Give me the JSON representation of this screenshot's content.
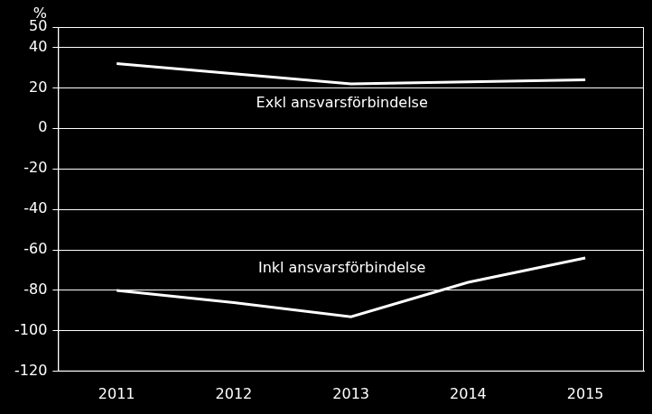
{
  "chart_data": {
    "type": "line",
    "ylabel": "%",
    "categories": [
      "2011",
      "2012",
      "2013",
      "2014",
      "2015"
    ],
    "series": [
      {
        "name": "Exkl ansvarsförbindelse",
        "color": "#ffffff",
        "values": [
          32,
          27,
          22,
          23,
          24
        ]
      },
      {
        "name": "Inkl ansvarsförbindelse",
        "color": "#ffffff",
        "values": [
          -80,
          -86,
          -93,
          -76,
          -64
        ]
      }
    ],
    "ylim": [
      -120,
      50
    ],
    "yticks": [
      -120,
      -100,
      -80,
      -60,
      -40,
      -20,
      0,
      20,
      40,
      50
    ],
    "grid": true
  }
}
